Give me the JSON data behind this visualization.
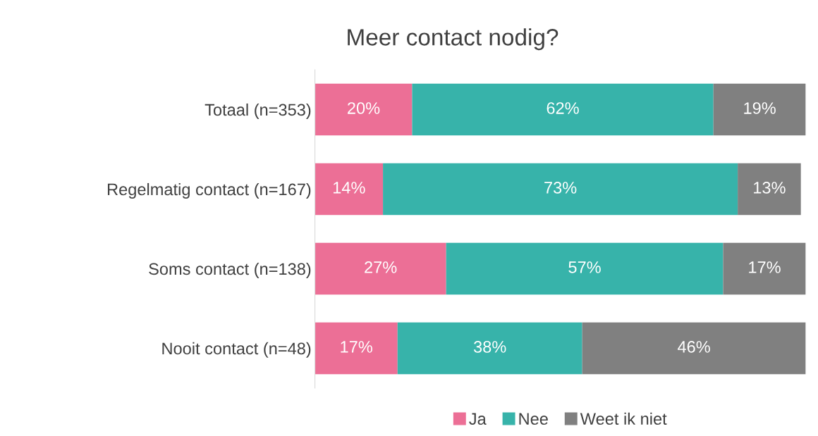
{
  "chart_data": {
    "type": "bar",
    "title": "Meer contact nodig?",
    "orientation": "horizontal",
    "stacked": true,
    "categories": [
      "Totaal (n=353)",
      "Regelmatig contact (n=167)",
      "Soms contact (n=138)",
      "Nooit contact (n=48)"
    ],
    "series": [
      {
        "name": "Ja",
        "color": "#ec6f96",
        "values": [
          20,
          14,
          27,
          17
        ],
        "value_labels": [
          "20%",
          "14%",
          "27%",
          "17%"
        ]
      },
      {
        "name": "Nee",
        "color": "#37b3aa",
        "values": [
          62,
          73,
          57,
          38
        ],
        "value_labels": [
          "62%",
          "73%",
          "57%",
          "38%"
        ]
      },
      {
        "name": "Weet ik niet",
        "color": "#808080",
        "values": [
          19,
          13,
          17,
          46
        ],
        "value_labels": [
          "19%",
          "13%",
          "17%",
          "46%"
        ]
      }
    ],
    "xlim": [
      0,
      101
    ],
    "tick_labels": "y",
    "grid": false,
    "legend": "bottom"
  }
}
